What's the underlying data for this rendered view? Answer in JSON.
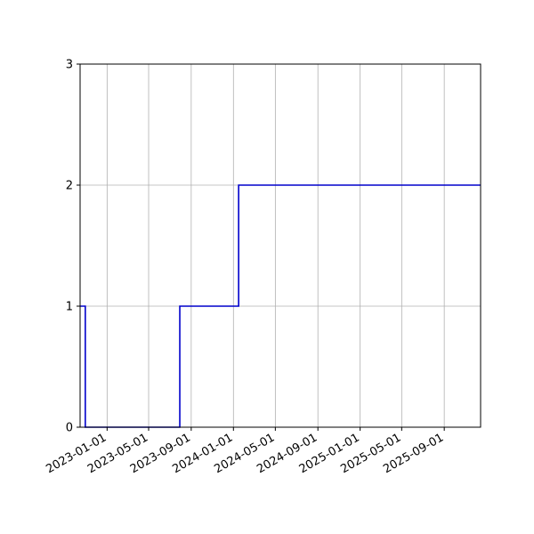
{
  "chart_data": {
    "type": "line",
    "step": "post",
    "title": "",
    "xlabel": "",
    "ylabel": "",
    "x_axis_type": "date",
    "xlim": [
      "2022-10-15",
      "2025-12-15"
    ],
    "ylim": [
      0,
      3
    ],
    "grid": true,
    "x_ticks": [
      "2023-01-01",
      "2023-05-01",
      "2023-09-01",
      "2024-01-01",
      "2024-05-01",
      "2024-09-01",
      "2025-01-01",
      "2025-05-01",
      "2025-09-01"
    ],
    "y_ticks": [
      0,
      1,
      2,
      3
    ],
    "series": [
      {
        "color": "#0000cc",
        "x": [
          "2022-10-15",
          "2022-10-30",
          "2023-07-30",
          "2024-01-16",
          "2025-12-15"
        ],
        "y": [
          1,
          0,
          1,
          2,
          2
        ]
      }
    ]
  }
}
